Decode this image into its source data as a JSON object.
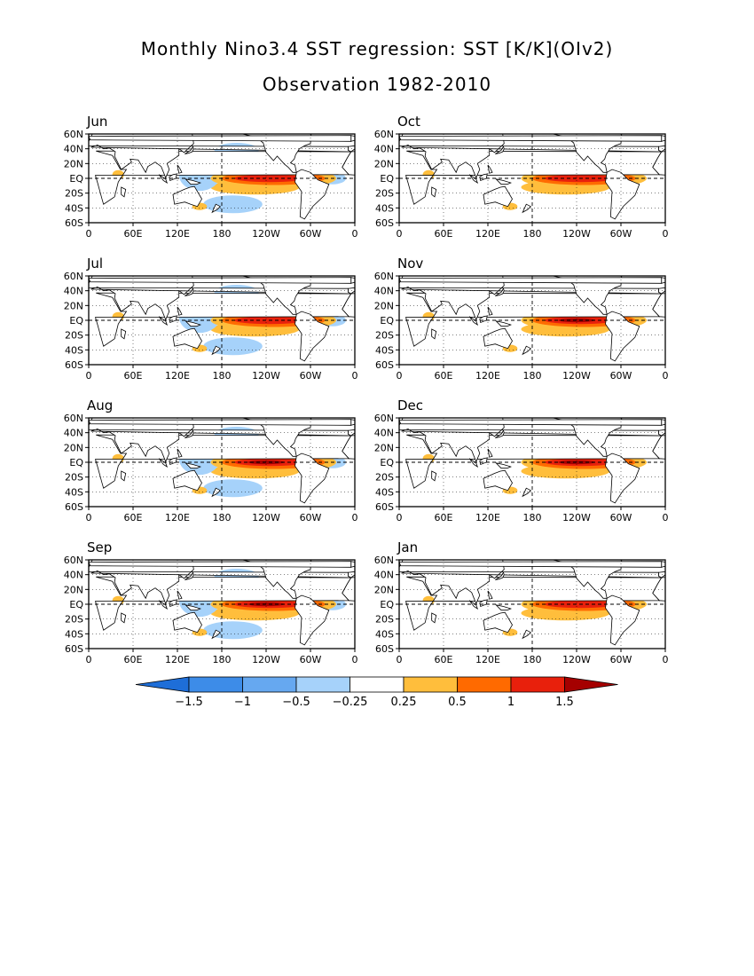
{
  "title_line1": "Monthly Nino3.4 SST regression: SST [K/K](OIv2)",
  "title_line2": "Observation 1982-2010",
  "lon_ticks": [
    "0",
    "60E",
    "120E",
    "180",
    "120W",
    "60W",
    "0"
  ],
  "lat_ticks": [
    "60N",
    "40N",
    "20N",
    "EQ",
    "20S",
    "40S",
    "60S"
  ],
  "panels": [
    {
      "month": "Jun",
      "pos": [
        0,
        0
      ],
      "peak": 1.3,
      "north_pos": true,
      "neg_west": true
    },
    {
      "month": "Oct",
      "pos": [
        1,
        0
      ],
      "peak": 1.4,
      "north_pos": false,
      "neg_west": false
    },
    {
      "month": "Jul",
      "pos": [
        0,
        1
      ],
      "peak": 1.4,
      "north_pos": true,
      "neg_west": true
    },
    {
      "month": "Nov",
      "pos": [
        1,
        1
      ],
      "peak": 1.5,
      "north_pos": false,
      "neg_west": false
    },
    {
      "month": "Aug",
      "pos": [
        0,
        2
      ],
      "peak": 1.5,
      "north_pos": true,
      "neg_west": true
    },
    {
      "month": "Dec",
      "pos": [
        1,
        2
      ],
      "peak": 1.5,
      "north_pos": false,
      "neg_west": false
    },
    {
      "month": "Sep",
      "pos": [
        0,
        3
      ],
      "peak": 1.5,
      "north_pos": true,
      "neg_west": true
    },
    {
      "month": "Jan",
      "pos": [
        1,
        3
      ],
      "peak": 1.4,
      "north_pos": false,
      "neg_west": false
    }
  ],
  "colorbar": {
    "labels": [
      "-1.5",
      "-1",
      "-0.5",
      "-0.25",
      "0.25",
      "0.5",
      "1",
      "1.5"
    ],
    "colors": [
      "#1e6ed8",
      "#3d8ce8",
      "#66a8f0",
      "#a6d2fa",
      "#ffffff",
      "#ffbe3c",
      "#ff6a00",
      "#e8200c",
      "#a50000"
    ]
  }
}
